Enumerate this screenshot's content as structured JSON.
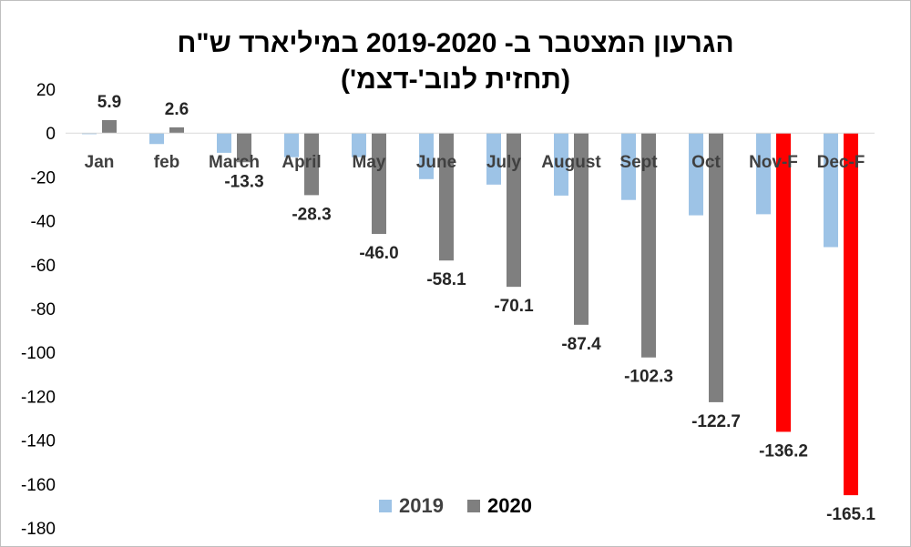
{
  "chart_data": {
    "type": "bar",
    "title": "הגרעון המצטבר ב- 2019-2020 במיליארד ש\"ח",
    "subtitle": "(תחזית לנוב'-דצמ')",
    "categories": [
      "Jan",
      "feb",
      "March",
      "April",
      "May",
      "June",
      "July",
      "August",
      "Sept",
      "Oct",
      "Nov-F",
      "Dec-F"
    ],
    "series": [
      {
        "name": "2019",
        "color": "#9dc3e6",
        "values": [
          -0.5,
          -5.0,
          -9.0,
          -11.0,
          -11.0,
          -21.0,
          -23.5,
          -28.5,
          -30.5,
          -37.5,
          -37.0,
          -52.0
        ]
      },
      {
        "name": "2020",
        "color": "#7f7f7f",
        "forecast_color": "#ff0000",
        "forecast_categories": [
          "Nov-F",
          "Dec-F"
        ],
        "values": [
          5.9,
          2.6,
          -13.3,
          -28.3,
          -46.0,
          -58.1,
          -70.1,
          -87.4,
          -102.3,
          -122.7,
          -136.2,
          -165.1
        ],
        "data_labels": [
          "5.9",
          "2.6",
          "-13.3",
          "-28.3",
          "-46.0",
          "-58.1",
          "-70.1",
          "-87.4",
          "-102.3",
          "-122.7",
          "-136.2",
          "-165.1"
        ]
      }
    ],
    "ylim": [
      -180,
      20
    ],
    "yticks": [
      "20",
      "0",
      "-20",
      "-40",
      "-60",
      "-80",
      "-100",
      "-120",
      "-140",
      "-160",
      "-180"
    ],
    "grid": false,
    "legend_position": "bottom"
  }
}
